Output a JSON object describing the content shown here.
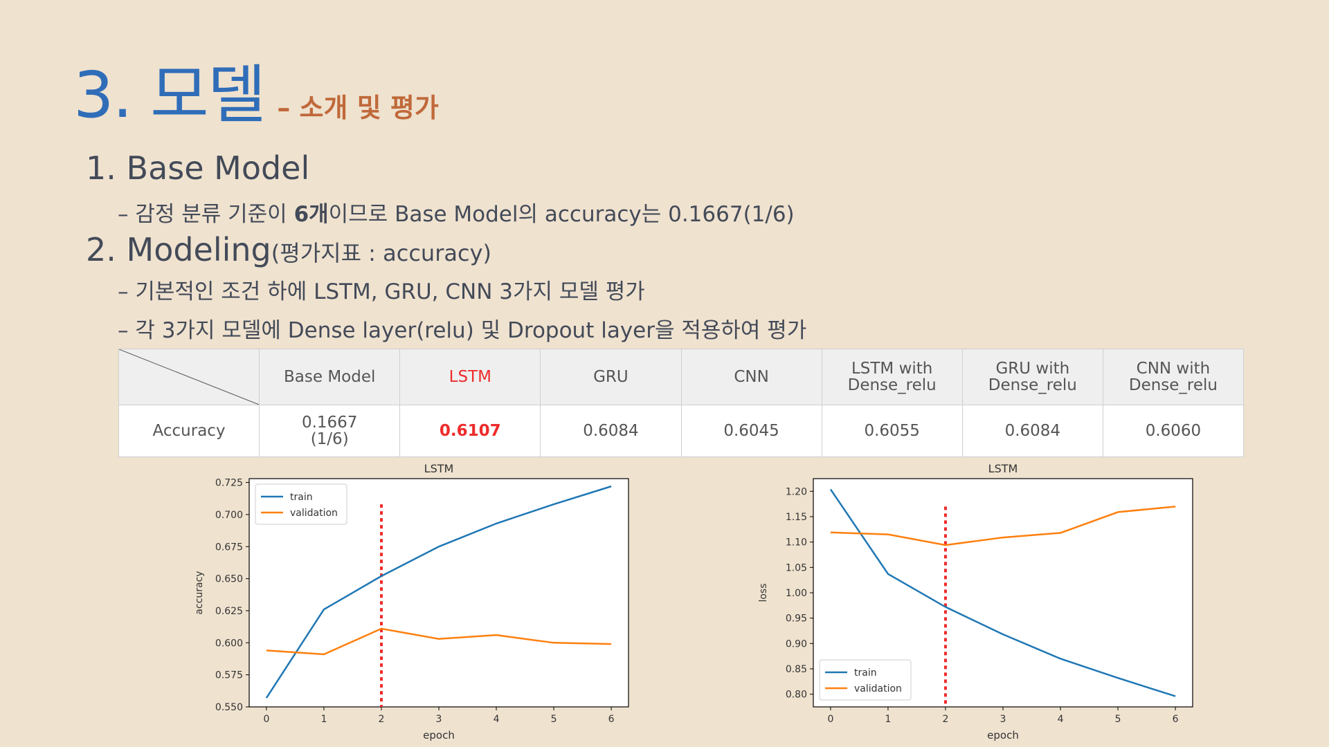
{
  "slide": {
    "title": "3. 모델",
    "subtitle": "– 소개 및 평가",
    "section1": "1. Base Model",
    "section1_bullet_pre": "– 감정 분류 기준이 ",
    "section1_bullet_bold": "6개",
    "section1_bullet_post": "이므로 Base Model의 accuracy는 0.1667(1/6)",
    "section2": "2. Modeling",
    "section2_small": "(평가지표 : accuracy)",
    "section2_bullet1": "– 기본적인 조건 하에 LSTM, GRU, CNN 3가지 모델 평가",
    "section2_bullet2": "– 각 3가지 모델에 Dense layer(relu) 및 Dropout layer을 적용하여 평가"
  },
  "table": {
    "row_label": "Accuracy",
    "columns": [
      {
        "line1": "Base Model",
        "line2": "",
        "value1": "0.1667",
        "value2": "(1/6)"
      },
      {
        "line1": "LSTM",
        "line2": "",
        "value1": "0.6107",
        "value2": ""
      },
      {
        "line1": "GRU",
        "line2": "",
        "value1": "0.6084",
        "value2": ""
      },
      {
        "line1": "CNN",
        "line2": "",
        "value1": "0.6045",
        "value2": ""
      },
      {
        "line1": "LSTM with",
        "line2": "Dense_relu",
        "value1": "0.6055",
        "value2": ""
      },
      {
        "line1": "GRU with",
        "line2": "Dense_relu",
        "value1": "0.6084",
        "value2": ""
      },
      {
        "line1": "CNN with",
        "line2": "Dense_relu",
        "value1": "0.6060",
        "value2": ""
      }
    ],
    "highlight_color": "#ee2b2b"
  },
  "chart_data": [
    {
      "type": "line",
      "title": "LSTM",
      "xlabel": "epoch",
      "ylabel": "accuracy",
      "x": [
        0,
        1,
        2,
        3,
        4,
        5,
        6
      ],
      "xticks": [
        "0",
        "1",
        "2",
        "3",
        "4",
        "5",
        "6"
      ],
      "yticks": [
        "0.550",
        "0.575",
        "0.600",
        "0.625",
        "0.650",
        "0.675",
        "0.700",
        "0.725"
      ],
      "ylim": [
        0.55,
        0.728
      ],
      "xlim": [
        -0.3,
        6.3
      ],
      "marker_x": 2,
      "marker_top": 0.708,
      "legend_position": "upper-left",
      "series": [
        {
          "name": "train",
          "color": "#1f77b4",
          "values": [
            0.557,
            0.626,
            0.652,
            0.675,
            0.693,
            0.708,
            0.722
          ]
        },
        {
          "name": "validation",
          "color": "#ff7f0e",
          "values": [
            0.594,
            0.591,
            0.611,
            0.603,
            0.606,
            0.6,
            0.599
          ]
        }
      ]
    },
    {
      "type": "line",
      "title": "LSTM",
      "xlabel": "epoch",
      "ylabel": "loss",
      "x": [
        0,
        1,
        2,
        3,
        4,
        5,
        6
      ],
      "xticks": [
        "0",
        "1",
        "2",
        "3",
        "4",
        "5",
        "6"
      ],
      "yticks": [
        "0.80",
        "0.85",
        "0.90",
        "0.95",
        "1.00",
        "1.05",
        "1.10",
        "1.15",
        "1.20"
      ],
      "ylim": [
        0.775,
        1.225
      ],
      "xlim": [
        -0.3,
        6.3
      ],
      "marker_x": 2,
      "marker_top": 1.17,
      "legend_position": "lower-left",
      "series": [
        {
          "name": "train",
          "color": "#1f77b4",
          "values": [
            1.204,
            1.037,
            0.972,
            0.918,
            0.87,
            0.832,
            0.796
          ]
        },
        {
          "name": "validation",
          "color": "#ff7f0e",
          "values": [
            1.119,
            1.115,
            1.094,
            1.109,
            1.118,
            1.159,
            1.17
          ]
        }
      ]
    }
  ]
}
